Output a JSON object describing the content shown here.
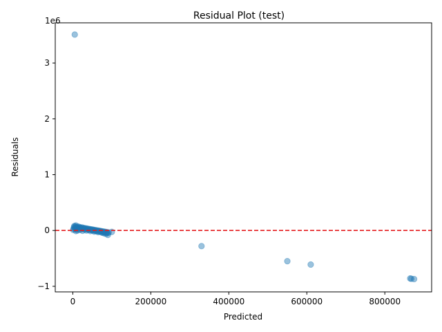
{
  "chart_data": {
    "type": "scatter",
    "title": "Residual Plot (test)",
    "xlabel": "Predicted",
    "ylabel": "Residuals",
    "y_offset_label": "1e6",
    "xlim": [
      -45000,
      920000
    ],
    "ylim": [
      -1100000,
      3720000
    ],
    "x_ticks": [
      0,
      200000,
      400000,
      600000,
      800000
    ],
    "x_tick_labels": [
      "0",
      "200000",
      "400000",
      "600000",
      "800000"
    ],
    "y_ticks": [
      -1000000,
      0,
      1000000,
      2000000,
      3000000
    ],
    "y_tick_labels": [
      "−1",
      "0",
      "1",
      "2",
      "3"
    ],
    "reference_line": {
      "y": 0,
      "style": "dashed",
      "color": "#e41a1c"
    },
    "point_color": "#1f77b4",
    "point_alpha": 0.45,
    "grid": false,
    "series": [
      {
        "x": [
          5000,
          330000,
          550000,
          610000,
          865000,
          868000,
          875000,
          1000,
          2000,
          3000,
          4000,
          5000,
          6000,
          7000,
          8000,
          9000,
          10000,
          12000,
          14000,
          16000,
          18000,
          20000,
          22000,
          24000,
          26000,
          28000,
          30000,
          32000,
          34000,
          36000,
          38000,
          40000,
          42000,
          44000,
          46000,
          48000,
          50000,
          52000,
          54000,
          56000,
          58000,
          60000,
          62000,
          64000,
          66000,
          68000,
          70000,
          72000,
          74000,
          76000,
          78000,
          80000,
          82000,
          84000,
          86000,
          88000,
          90000,
          92000,
          100000,
          8000,
          12000,
          18000,
          25000,
          35000,
          45000,
          55000,
          65000,
          75000,
          85000,
          10000,
          15000,
          22000,
          30000,
          40000,
          50000,
          60000,
          70000,
          80000,
          90000
        ],
        "y": [
          3510000,
          -280000,
          -550000,
          -610000,
          -860000,
          -865000,
          -870000,
          10000,
          30000,
          60000,
          80000,
          50000,
          20000,
          70000,
          90000,
          40000,
          60000,
          55000,
          70000,
          45000,
          60000,
          50000,
          40000,
          55000,
          35000,
          45000,
          30000,
          40000,
          25000,
          35000,
          20000,
          30000,
          15000,
          25000,
          10000,
          20000,
          5000,
          15000,
          0,
          10000,
          -5000,
          5000,
          -10000,
          0,
          -15000,
          -5000,
          -20000,
          -10000,
          -25000,
          -15000,
          -30000,
          -20000,
          -35000,
          -25000,
          -40000,
          -30000,
          -45000,
          -35000,
          -25000,
          -10000,
          0,
          10000,
          -5000,
          0,
          -10000,
          -20000,
          -30000,
          -40000,
          -60000,
          20000,
          30000,
          25000,
          15000,
          10000,
          0,
          -10000,
          -20000,
          -50000,
          -80000
        ]
      }
    ]
  }
}
